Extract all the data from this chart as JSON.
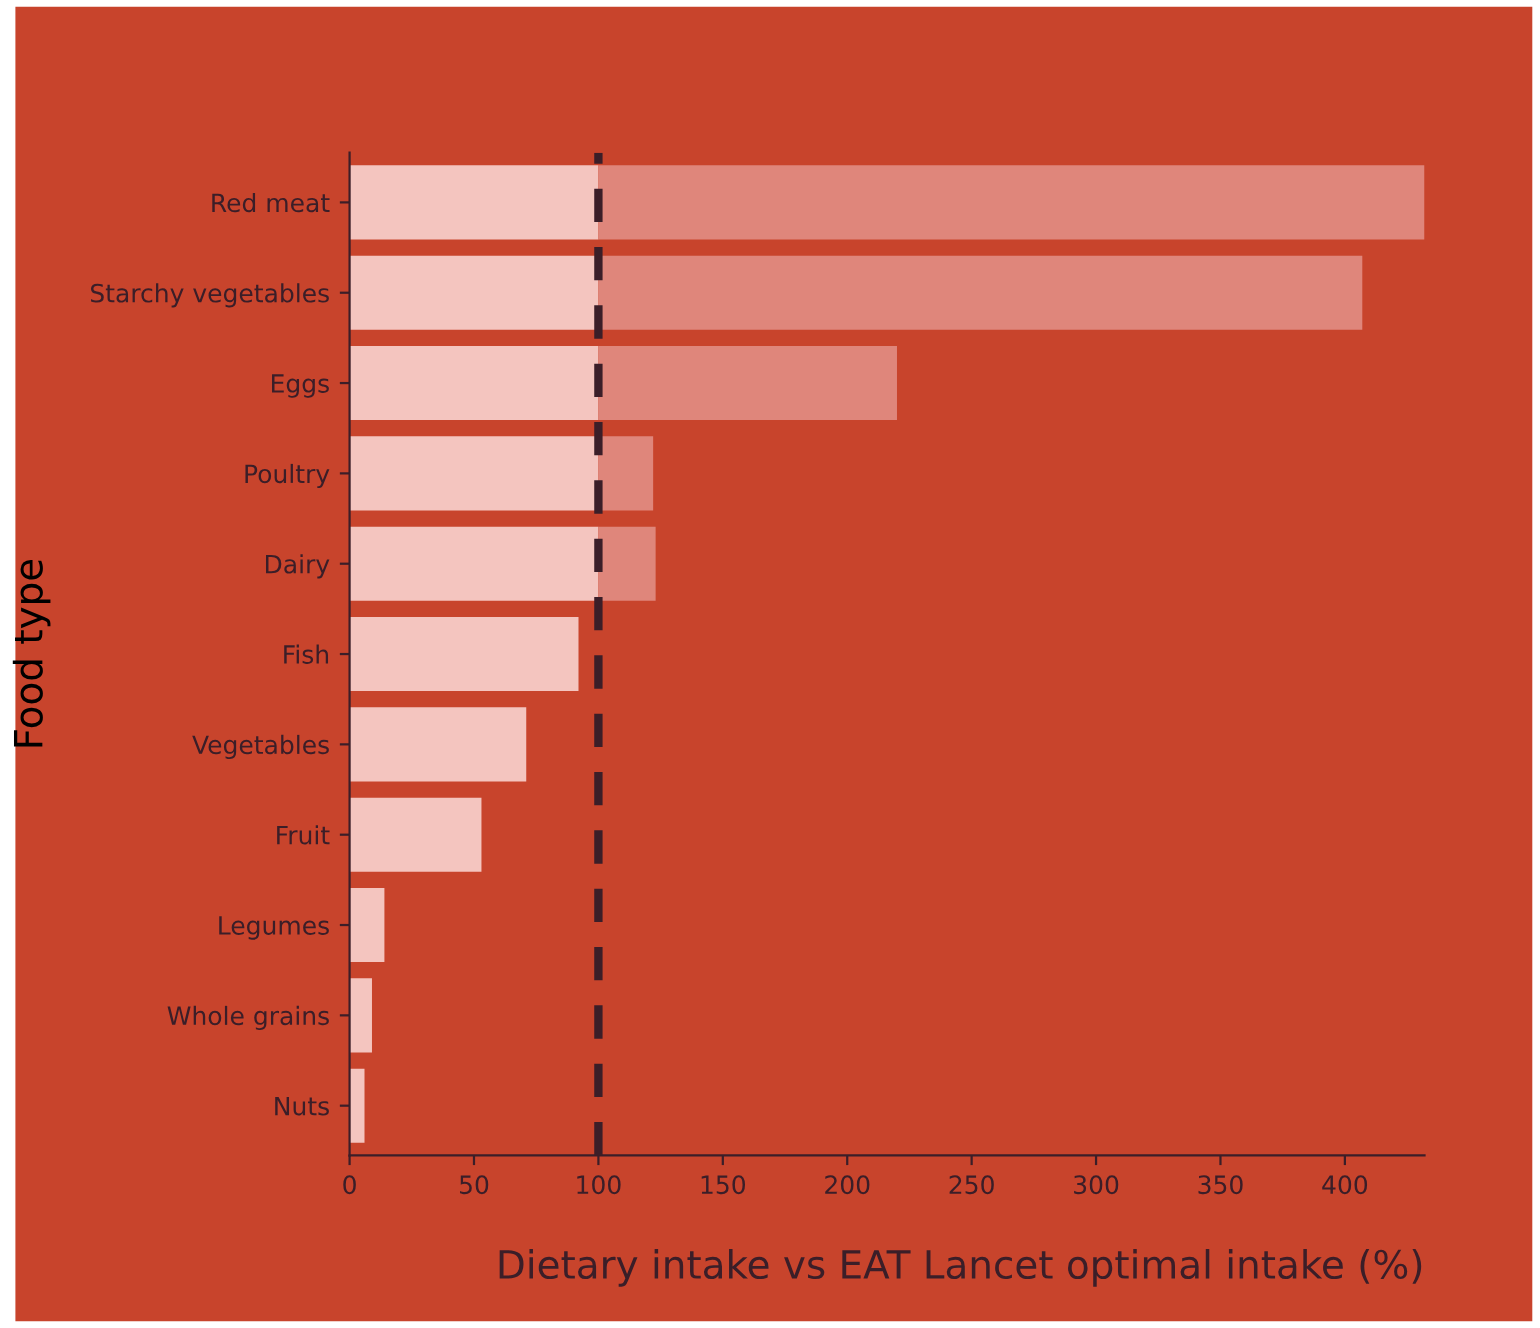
{
  "chart_data": {
    "type": "bar",
    "orientation": "horizontal",
    "stacked": true,
    "xlabel": "Dietary intake vs EAT Lancet optimal intake (%)",
    "ylabel": "Food type",
    "categories": [
      "Red meat",
      "Starchy vegetables",
      "Eggs",
      "Poultry",
      "Dairy",
      "Fish",
      "Vegetables",
      "Fruit",
      "Legumes",
      "Whole grains",
      "Nuts"
    ],
    "series": [
      {
        "color": "#f4c5bf",
        "values": [
          100,
          100,
          100,
          100,
          100,
          92,
          71,
          53,
          14,
          9,
          6
        ]
      },
      {
        "color": "#df867b",
        "values": [
          332,
          307,
          120,
          22,
          23,
          0,
          0,
          0,
          0,
          0,
          0
        ]
      }
    ],
    "xlim": [
      0,
      432
    ],
    "xticks": [
      0,
      50,
      100,
      150,
      200,
      250,
      300,
      350,
      400
    ],
    "ref_lines": [
      {
        "axis": "x",
        "value": 100,
        "color": "#3b1e28",
        "line_style": "dashed"
      }
    ],
    "grid": false,
    "legend": false
  }
}
